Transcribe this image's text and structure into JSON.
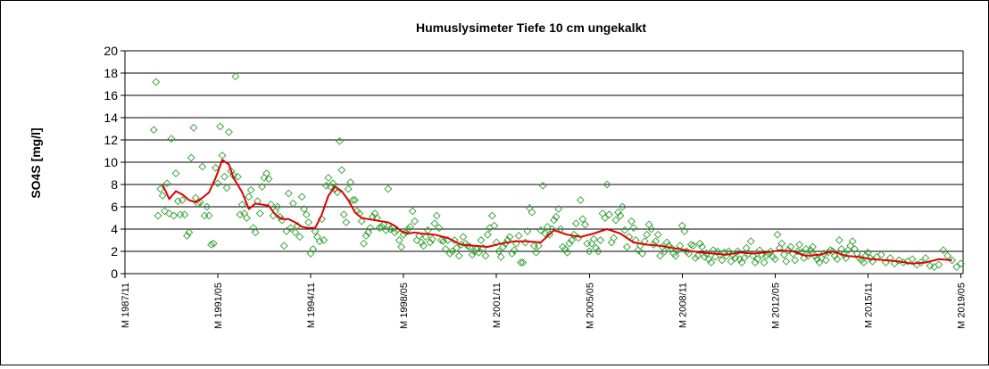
{
  "chart_data": {
    "type": "scatter",
    "title": "Humuslysimeter Tiefe  10 cm   ungekalkt",
    "ylabel": "SO4S [mg/l]",
    "xlabel": "",
    "ylim": [
      0,
      20
    ],
    "yticks": [
      0,
      2,
      4,
      6,
      8,
      10,
      12,
      14,
      16,
      18,
      20
    ],
    "grid": true,
    "legend": "none",
    "xlim": [
      1987.833,
      2019.417
    ],
    "xtick_labels": [
      "M 1987/11",
      "M 1991/05",
      "M 1994/11",
      "M 1998/05",
      "M 2001/11",
      "M 2005/05",
      "M 2008/11",
      "M 2012/05",
      "M 2015/11",
      "M 2019/05"
    ],
    "xtick_values": [
      1987.833,
      1991.333,
      1994.833,
      1998.333,
      2001.833,
      2005.333,
      2008.833,
      2012.333,
      2015.833,
      2019.333
    ],
    "colors": {
      "points": "#2e9e2e",
      "trend": "#e00000"
    },
    "series": [
      {
        "kind": "points",
        "marker": "diamond-outline",
        "x": [
          1988.92,
          1989.0,
          1989.08,
          1989.17,
          1989.25,
          1989.33,
          1989.42,
          1989.5,
          1989.58,
          1989.67,
          1989.75,
          1989.83,
          1989.92,
          1990.0,
          1990.08,
          1990.17,
          1990.25,
          1990.33,
          1990.42,
          1990.5,
          1990.58,
          1990.67,
          1990.75,
          1990.83,
          1990.92,
          1991.0,
          1991.08,
          1991.17,
          1991.25,
          1991.33,
          1991.42,
          1991.5,
          1991.58,
          1991.67,
          1991.75,
          1991.83,
          1991.92,
          1992.0,
          1992.08,
          1992.17,
          1992.25,
          1992.33,
          1992.42,
          1992.5,
          1992.58,
          1992.67,
          1992.75,
          1992.83,
          1992.92,
          1993.0,
          1993.08,
          1993.17,
          1993.25,
          1993.33,
          1993.42,
          1993.5,
          1993.58,
          1993.67,
          1993.75,
          1993.83,
          1993.92,
          1994.0,
          1994.08,
          1994.17,
          1994.25,
          1994.33,
          1994.42,
          1994.5,
          1994.58,
          1994.67,
          1994.75,
          1994.83,
          1994.92,
          1995.0,
          1995.08,
          1995.17,
          1995.25,
          1995.33,
          1995.42,
          1995.5,
          1995.58,
          1995.67,
          1995.75,
          1995.83,
          1995.92,
          1996.0,
          1996.08,
          1996.17,
          1996.25,
          1996.33,
          1996.42,
          1996.5,
          1996.58,
          1996.67,
          1996.75,
          1996.83,
          1996.92,
          1997.0,
          1997.08,
          1997.17,
          1997.25,
          1997.33,
          1997.42,
          1997.5,
          1997.58,
          1997.67,
          1997.75,
          1997.83,
          1997.92,
          1998.0,
          1998.08,
          1998.17,
          1998.25,
          1998.33,
          1998.42,
          1998.5,
          1998.58,
          1998.67,
          1998.75,
          1998.83,
          1998.92,
          1999.0,
          1999.08,
          1999.17,
          1999.25,
          1999.33,
          1999.42,
          1999.5,
          1999.58,
          1999.67,
          1999.75,
          1999.83,
          1999.92,
          2000.0,
          2000.08,
          2000.17,
          2000.25,
          2000.33,
          2000.42,
          2000.5,
          2000.58,
          2000.67,
          2000.75,
          2000.83,
          2000.92,
          2001.0,
          2001.08,
          2001.17,
          2001.25,
          2001.33,
          2001.42,
          2001.5,
          2001.58,
          2001.67,
          2001.75,
          2001.83,
          2001.92,
          2002.0,
          2002.08,
          2002.17,
          2002.25,
          2002.33,
          2002.42,
          2002.5,
          2002.58,
          2002.67,
          2002.75,
          2002.83,
          2002.92,
          2003.0,
          2003.08,
          2003.17,
          2003.25,
          2003.33,
          2003.42,
          2003.5,
          2003.58,
          2003.67,
          2003.75,
          2003.83,
          2003.92,
          2004.0,
          2004.08,
          2004.17,
          2004.25,
          2004.33,
          2004.42,
          2004.5,
          2004.58,
          2004.67,
          2004.75,
          2004.83,
          2004.92,
          2005.0,
          2005.08,
          2005.17,
          2005.25,
          2005.33,
          2005.42,
          2005.5,
          2005.58,
          2005.67,
          2005.75,
          2005.83,
          2005.92,
          2006.0,
          2006.08,
          2006.17,
          2006.25,
          2006.33,
          2006.42,
          2006.5,
          2006.58,
          2006.67,
          2006.75,
          2006.83,
          2006.92,
          2007.0,
          2007.08,
          2007.17,
          2007.25,
          2007.33,
          2007.42,
          2007.5,
          2007.58,
          2007.67,
          2007.75,
          2007.83,
          2007.92,
          2008.0,
          2008.08,
          2008.17,
          2008.25,
          2008.33,
          2008.42,
          2008.5,
          2008.58,
          2008.67,
          2008.75,
          2008.83,
          2008.92,
          2009.0,
          2009.08,
          2009.17,
          2009.25,
          2009.33,
          2009.42,
          2009.5,
          2009.58,
          2009.67,
          2009.75,
          2009.83,
          2009.92,
          2010.0,
          2010.08,
          2010.17,
          2010.25,
          2010.33,
          2010.42,
          2010.5,
          2010.58,
          2010.67,
          2010.75,
          2010.83,
          2010.92,
          2011.0,
          2011.08,
          2011.17,
          2011.25,
          2011.33,
          2011.42,
          2011.5,
          2011.58,
          2011.67,
          2011.75,
          2011.83,
          2011.92,
          2012.0,
          2012.08,
          2012.17,
          2012.25,
          2012.33,
          2012.42,
          2012.5,
          2012.58,
          2012.67,
          2012.75,
          2012.83,
          2012.92,
          2013.0,
          2013.08,
          2013.17,
          2013.25,
          2013.33,
          2013.42,
          2013.5,
          2013.58,
          2013.67,
          2013.75,
          2013.83,
          2013.92,
          2014.0,
          2014.08,
          2014.17,
          2014.25,
          2014.33,
          2014.42,
          2014.5,
          2014.58,
          2014.67,
          2014.75,
          2014.83,
          2014.92,
          2015.0,
          2015.08,
          2015.17,
          2015.25,
          2015.33,
          2015.42,
          2015.5,
          2015.58,
          2015.67,
          2015.75,
          2015.83,
          2015.92,
          2016.0,
          2016.17,
          2016.33,
          2016.5,
          2016.67,
          2016.83,
          2017.0,
          2017.17,
          2017.33,
          2017.5,
          2017.67,
          2017.83,
          2018.0,
          2018.17,
          2018.33,
          2018.5,
          2018.67,
          2018.83,
          2019.0,
          2019.17,
          2019.33
        ],
        "y": [
          12.9,
          17.2,
          5.2,
          7.6,
          7.0,
          5.6,
          8.1,
          5.4,
          12.1,
          5.2,
          9.0,
          6.5,
          5.3,
          6.6,
          5.3,
          3.4,
          3.7,
          10.4,
          13.1,
          6.8,
          6.3,
          6.4,
          9.6,
          5.2,
          6.0,
          5.2,
          2.6,
          2.7,
          9.5,
          8.1,
          13.2,
          10.6,
          8.7,
          7.7,
          12.7,
          9.2,
          8.8,
          17.7,
          8.7,
          5.3,
          6.2,
          5.4,
          5.0,
          6.9,
          7.5,
          4.1,
          3.7,
          6.5,
          5.4,
          7.8,
          8.6,
          9.0,
          8.5,
          6.2,
          5.2,
          5.6,
          6.0,
          5.1,
          4.8,
          2.5,
          3.8,
          7.2,
          4.1,
          6.3,
          3.7,
          4.3,
          3.3,
          6.9,
          5.8,
          5.3,
          4.6,
          1.8,
          2.2,
          3.8,
          3.3,
          2.9,
          4.9,
          3.0,
          7.9,
          8.6,
          7.8,
          8.1,
          7.6,
          7.3,
          11.9,
          9.3,
          5.3,
          4.6,
          7.6,
          8.2,
          6.6,
          6.6,
          5.6,
          5.4,
          4.7,
          2.7,
          3.4,
          3.7,
          4.1,
          5.1,
          5.4,
          5.0,
          4.1,
          4.2,
          4.4,
          3.9,
          7.6,
          4.0,
          4.1,
          3.7,
          3.9,
          3.0,
          2.4,
          3.5,
          3.7,
          4.0,
          4.2,
          5.6,
          4.7,
          3.0,
          3.4,
          2.8,
          2.5,
          3.3,
          3.9,
          2.8,
          3.1,
          4.5,
          5.2,
          4.1,
          3.0,
          2.9,
          2.2,
          3.0,
          1.8,
          2.0,
          3.0,
          2.3,
          1.6,
          2.6,
          3.3,
          2.7,
          2.5,
          2.4,
          1.7,
          2.0,
          2.2,
          1.9,
          3.0,
          2.3,
          1.6,
          3.5,
          4.1,
          5.2,
          4.3,
          2.8,
          2.0,
          1.5,
          2.4,
          2.7,
          3.0,
          3.3,
          1.8,
          2.1,
          2.7,
          3.4,
          1.0,
          1.0,
          2.8,
          3.8,
          5.9,
          5.5,
          2.5,
          1.9,
          2.5,
          3.9,
          7.9,
          3.6,
          4.2,
          3.5,
          4.0,
          4.8,
          5.1,
          5.8,
          4.0,
          2.4,
          2.2,
          1.9,
          2.7,
          3.0,
          3.5,
          4.5,
          3.2,
          6.6,
          4.9,
          4.4,
          2.7,
          2.0,
          2.7,
          3.1,
          2.3,
          2.0,
          3.0,
          5.4,
          5.0,
          8.0,
          5.3,
          2.8,
          3.2,
          4.8,
          5.5,
          5.2,
          6.0,
          3.9,
          2.4,
          3.3,
          4.7,
          4.1,
          3.0,
          2.1,
          2.5,
          1.8,
          2.9,
          3.5,
          4.4,
          4.0,
          2.6,
          2.9,
          3.5,
          1.6,
          2.4,
          2.0,
          2.8,
          2.5,
          2.3,
          1.8,
          1.6,
          2.1,
          2.5,
          4.3,
          3.8,
          2.0,
          1.8,
          2.6,
          2.5,
          1.4,
          1.6,
          2.7,
          2.4,
          1.5,
          1.8,
          1.3,
          1.0,
          2.1,
          1.5,
          2.0,
          1.7,
          1.2,
          1.9,
          1.6,
          2.0,
          1.1,
          1.7,
          1.4,
          2.0,
          1.3,
          1.0,
          1.4,
          2.3,
          1.8,
          2.9,
          1.6,
          1.0,
          1.3,
          2.1,
          1.7,
          1.0,
          1.6,
          1.8,
          2.0,
          1.5,
          1.3,
          3.5,
          2.3,
          2.7,
          1.7,
          1.1,
          2.1,
          2.4,
          1.8,
          1.2,
          2.0,
          2.6,
          1.9,
          1.4,
          2.2,
          1.6,
          2.1,
          2.4,
          1.6,
          1.3,
          1.0,
          1.4,
          1.8,
          1.2,
          1.9,
          2.1,
          2.0,
          1.6,
          1.3,
          3.0,
          2.2,
          1.7,
          1.4,
          2.1,
          2.5,
          2.9,
          2.2,
          1.8,
          1.4,
          1.2,
          1.0,
          1.6,
          1.9,
          1.4,
          1.1,
          1.5,
          1.7,
          1.0,
          1.4,
          0.9,
          1.2,
          1.0,
          1.1,
          1.3,
          0.8,
          1.0,
          1.4,
          0.7,
          0.6,
          0.8,
          2.1,
          1.6,
          1.2,
          0.6,
          0.9
        ]
      },
      {
        "kind": "trend",
        "x": [
          1989.25,
          1989.5,
          1989.75,
          1990.0,
          1990.25,
          1990.5,
          1990.75,
          1991.0,
          1991.25,
          1991.5,
          1991.75,
          1991.92,
          1992.0,
          1992.25,
          1992.5,
          1992.75,
          1993.0,
          1993.25,
          1993.5,
          1993.75,
          1994.0,
          1994.25,
          1994.5,
          1994.75,
          1995.0,
          1995.25,
          1995.5,
          1995.75,
          1996.0,
          1996.25,
          1996.5,
          1996.75,
          1997.0,
          1997.25,
          1997.5,
          1997.75,
          1998.0,
          1998.25,
          1998.5,
          1998.75,
          1999.0,
          1999.5,
          2000.0,
          2000.5,
          2001.0,
          2001.5,
          2002.0,
          2002.5,
          2003.0,
          2003.5,
          2004.0,
          2004.5,
          2005.0,
          2005.5,
          2006.0,
          2006.5,
          2007.0,
          2007.5,
          2008.0,
          2008.5,
          2009.0,
          2009.5,
          2010.0,
          2010.5,
          2011.0,
          2011.5,
          2012.0,
          2012.5,
          2013.0,
          2013.5,
          2014.0,
          2014.5,
          2015.0,
          2015.5,
          2016.0,
          2016.5,
          2017.0,
          2017.5,
          2018.0,
          2018.5,
          2019.0
        ],
        "y": [
          8.0,
          6.7,
          7.4,
          7.1,
          6.6,
          6.4,
          6.8,
          7.3,
          8.6,
          10.2,
          9.8,
          8.6,
          8.3,
          7.3,
          5.8,
          6.3,
          6.2,
          6.1,
          5.3,
          4.9,
          4.9,
          4.6,
          4.2,
          4.1,
          4.1,
          5.3,
          7.0,
          7.8,
          7.4,
          6.6,
          5.5,
          5.0,
          4.9,
          4.8,
          4.7,
          4.6,
          4.3,
          3.8,
          3.6,
          3.7,
          3.6,
          3.5,
          3.2,
          2.6,
          2.5,
          2.4,
          2.7,
          2.9,
          2.9,
          2.8,
          3.9,
          3.5,
          3.3,
          3.6,
          4.0,
          3.6,
          2.8,
          2.6,
          2.5,
          2.3,
          2.1,
          1.9,
          1.8,
          1.7,
          1.9,
          1.8,
          1.9,
          2.1,
          2.0,
          1.6,
          1.7,
          2.0,
          1.6,
          1.5,
          1.3,
          1.2,
          1.1,
          0.9,
          1.0,
          1.3,
          1.2
        ]
      }
    ]
  }
}
